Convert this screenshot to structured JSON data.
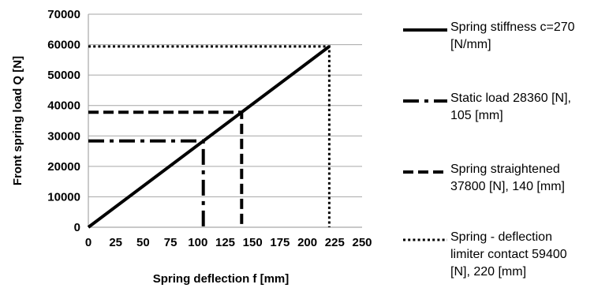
{
  "chart_data": {
    "type": "line",
    "xlabel": "Spring deflection f [mm]",
    "ylabel": "Front spring load Q [N]",
    "xlim": [
      0,
      250
    ],
    "ylim": [
      0,
      70000
    ],
    "x_ticks": [
      "0",
      "25",
      "50",
      "75",
      "100",
      "125",
      "150",
      "175",
      "200",
      "225",
      "250"
    ],
    "y_ticks": [
      "0",
      "10000",
      "20000",
      "30000",
      "40000",
      "50000",
      "60000",
      "70000"
    ],
    "grid": "horizontal",
    "legend_position": "right",
    "series": [
      {
        "name": "Spring stiffness c=270 [N/mm]",
        "style": "solid",
        "points": [
          [
            0,
            0
          ],
          [
            220,
            59400
          ]
        ]
      },
      {
        "name": "Static load 28360 [N], 105 [mm]",
        "style": "dash-dot",
        "points": [
          [
            0,
            28360
          ],
          [
            105,
            28360
          ],
          [
            105,
            0
          ]
        ]
      },
      {
        "name": "Spring  straightened 37800 [N], 140 [mm]",
        "style": "dashed",
        "points": [
          [
            0,
            37800
          ],
          [
            140,
            37800
          ],
          [
            140,
            0
          ]
        ]
      },
      {
        "name": "Spring - deflection limiter contact 59400 [N], 220 [mm]",
        "style": "dotted",
        "points": [
          [
            0,
            59400
          ],
          [
            220,
            59400
          ],
          [
            220,
            0
          ]
        ]
      }
    ]
  },
  "legend": {
    "items": [
      {
        "label": "Spring stiffness c=270\n[N/mm]",
        "style": "solid"
      },
      {
        "label": "Static load 28360 [N],\n105 [mm]",
        "style": "dash-dot"
      },
      {
        "label": "Spring  straightened\n37800 [N], 140 [mm]",
        "style": "dashed"
      },
      {
        "label": "Spring - deflection\nlimiter contact 59400\n[N], 220 [mm]",
        "style": "dotted"
      }
    ]
  },
  "colors": {
    "line": "#000000",
    "grid": "#a6a6a6"
  }
}
